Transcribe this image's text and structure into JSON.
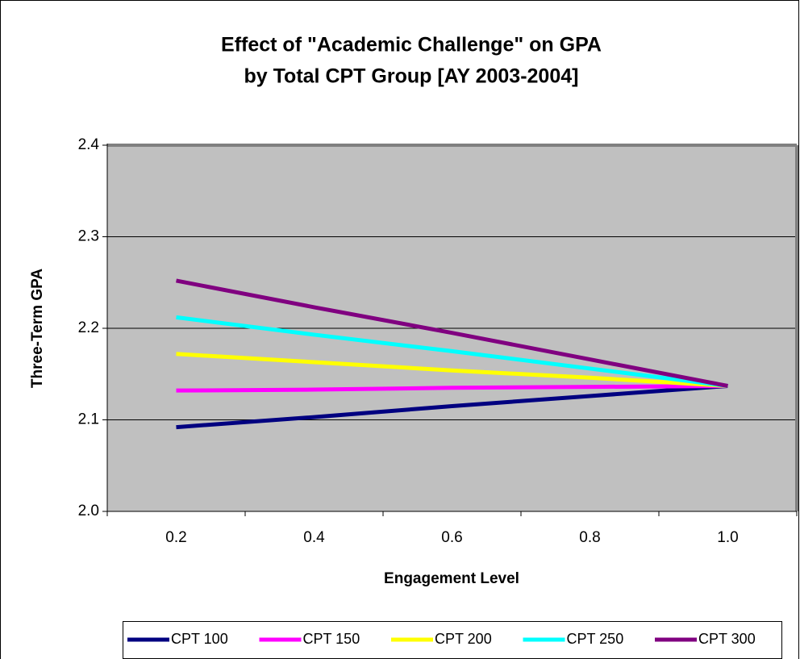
{
  "chart_data": {
    "type": "line",
    "title": [
      "Effect of \"Academic Challenge\" on GPA",
      "by Total CPT Group [AY 2003-2004]"
    ],
    "x_label": "Engagement Level",
    "y_label": "Three-Term GPA",
    "categories": [
      "0.2",
      "0.4",
      "0.6",
      "0.8",
      "1.0"
    ],
    "series": [
      {
        "name": "CPT 100",
        "color": "#000080",
        "values": [
          2.092,
          2.103,
          2.115,
          2.126,
          2.137
        ]
      },
      {
        "name": "CPT 150",
        "color": "#ff00ff",
        "values": [
          2.132,
          2.133,
          2.135,
          2.136,
          2.137
        ]
      },
      {
        "name": "CPT 200",
        "color": "#ffff00",
        "values": [
          2.172,
          2.163,
          2.154,
          2.146,
          2.137
        ]
      },
      {
        "name": "CPT 250",
        "color": "#00ffff",
        "values": [
          2.212,
          2.193,
          2.175,
          2.156,
          2.137
        ]
      },
      {
        "name": "CPT 300",
        "color": "#800080",
        "values": [
          2.252,
          2.223,
          2.195,
          2.166,
          2.137
        ]
      }
    ],
    "ylim": [
      2.0,
      2.4
    ],
    "yticks": [
      {
        "value": 2.0,
        "label": "2.0"
      },
      2.1,
      2.2,
      2.3,
      2.4
    ],
    "grid": true,
    "legend": "bottom"
  }
}
